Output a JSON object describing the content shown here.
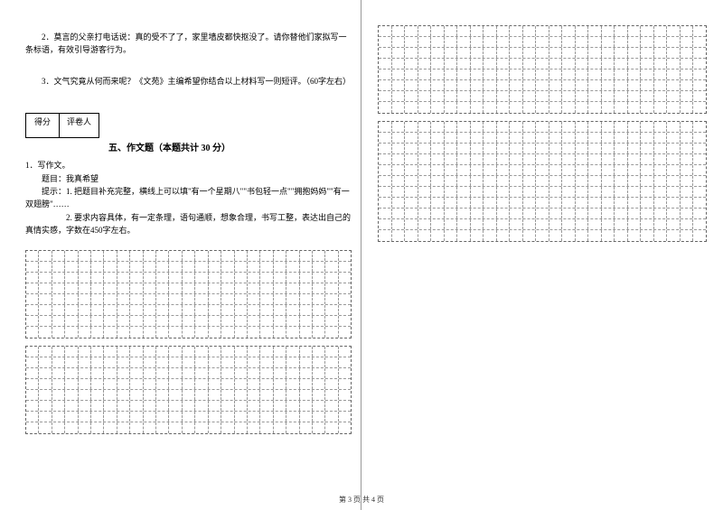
{
  "leftColumn": {
    "question2": "　　2．莫言的父亲打电话说：真的受不了了，家里墙皮都快抠没了。请你替他们家拟写一条标语，有效引导游客行为。",
    "question3": "　　3．文气究竟从何而来呢？《文苑》主编希望你结合以上材料写一则短评。（60字左右）",
    "scoreLabels": {
      "score": "得分",
      "reviewer": "评卷人"
    },
    "sectionTitle": "五、作文题（本题共计 30 分）",
    "essayInstructions": {
      "line1": "1．写作文。",
      "line2": "　　题目：我真希望",
      "line3": "　　提示：1. 把题目补充完整，横线上可以填\"有一个星期八\"\"书包轻一点\"\"拥抱妈妈\"\"有一双翅膀\"……",
      "line4": "　　　　　2. 要求内容具体，有一定条理，语句通顺，想象合理，书写工整，表达出自己的真情实感，字数在450字左右。"
    }
  },
  "footer": "第 3 页  共 4 页",
  "gridConfig": {
    "leftGridCols": 25,
    "rightGridCols": 25,
    "leftGrid1Rows": 8,
    "leftGrid2Rows": 8,
    "rightGrid1Rows": 8,
    "rightGrid2Rows": 11
  },
  "styling": {
    "bodyBg": "#ffffff",
    "textColor": "#000000",
    "gridBorderColor": "#999999",
    "fontSize": 9,
    "titleFontSize": 10
  }
}
